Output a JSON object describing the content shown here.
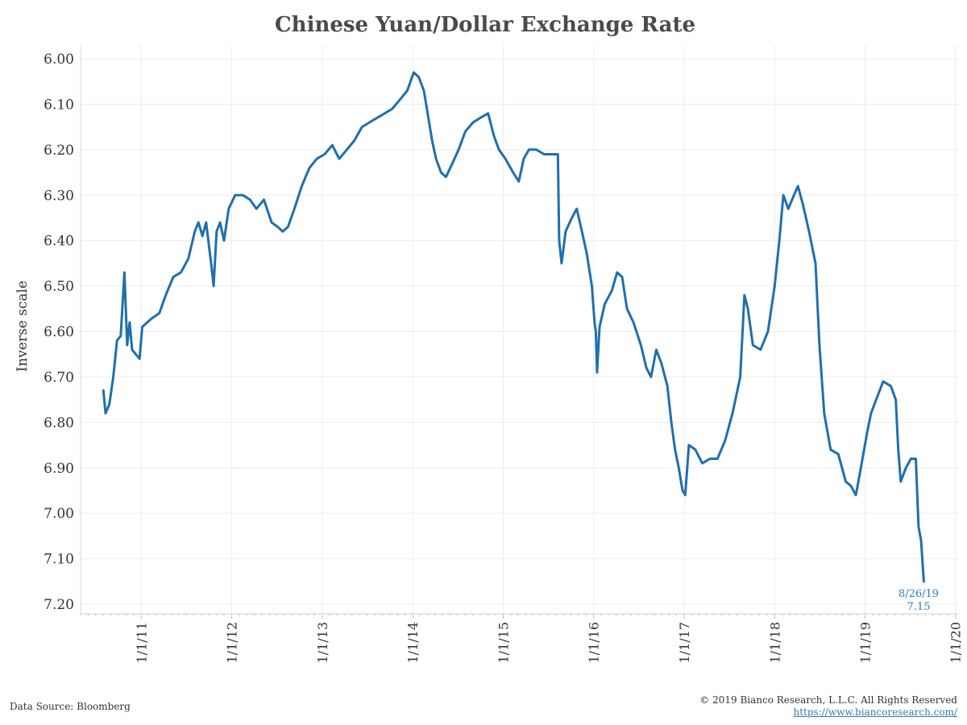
{
  "chart_data": {
    "type": "line",
    "title": "Chinese Yuan/Dollar Exchange Rate",
    "ylabel": "Inverse scale",
    "xlabel": "",
    "y_inverted": true,
    "ylim": [
      6.0,
      7.2
    ],
    "yticks": [
      "6.00",
      "6.10",
      "6.20",
      "6.30",
      "6.40",
      "6.50",
      "6.60",
      "6.70",
      "6.80",
      "6.90",
      "7.00",
      "7.10",
      "7.20"
    ],
    "xticks": [
      {
        "label": "1/1/11",
        "date": "2011-01-01"
      },
      {
        "label": "1/1/12",
        "date": "2012-01-01"
      },
      {
        "label": "1/1/13",
        "date": "2013-01-01"
      },
      {
        "label": "1/1/14",
        "date": "2014-01-01"
      },
      {
        "label": "1/1/15",
        "date": "2015-01-01"
      },
      {
        "label": "1/1/16",
        "date": "2016-01-01"
      },
      {
        "label": "1/1/17",
        "date": "2017-01-01"
      },
      {
        "label": "1/1/18",
        "date": "2018-01-01"
      },
      {
        "label": "1/1/19",
        "date": "2019-01-01"
      },
      {
        "label": "1/1/20",
        "date": "2020-01-01"
      }
    ],
    "xlim": [
      "2010-05-01",
      "2020-01-15"
    ],
    "grid": true,
    "line_color": "#1f6fae",
    "series": [
      {
        "points": [
          [
            "2010-08-01",
            6.73
          ],
          [
            "2010-08-10",
            6.78
          ],
          [
            "2010-08-25",
            6.76
          ],
          [
            "2010-09-10",
            6.7
          ],
          [
            "2010-09-25",
            6.62
          ],
          [
            "2010-10-10",
            6.61
          ],
          [
            "2010-10-25",
            6.47
          ],
          [
            "2010-11-05",
            6.63
          ],
          [
            "2010-11-15",
            6.58
          ],
          [
            "2010-11-25",
            6.64
          ],
          [
            "2010-12-10",
            6.65
          ],
          [
            "2010-12-25",
            6.66
          ],
          [
            "2011-01-05",
            6.59
          ],
          [
            "2011-01-25",
            6.58
          ],
          [
            "2011-02-15",
            6.57
          ],
          [
            "2011-03-15",
            6.56
          ],
          [
            "2011-04-10",
            6.52
          ],
          [
            "2011-05-10",
            6.48
          ],
          [
            "2011-06-10",
            6.47
          ],
          [
            "2011-07-10",
            6.44
          ],
          [
            "2011-08-05",
            6.38
          ],
          [
            "2011-08-20",
            6.36
          ],
          [
            "2011-09-05",
            6.39
          ],
          [
            "2011-09-20",
            6.36
          ],
          [
            "2011-10-10",
            6.45
          ],
          [
            "2011-10-20",
            6.5
          ],
          [
            "2011-11-01",
            6.38
          ],
          [
            "2011-11-15",
            6.36
          ],
          [
            "2011-12-01",
            6.4
          ],
          [
            "2011-12-20",
            6.33
          ],
          [
            "2012-01-15",
            6.3
          ],
          [
            "2012-02-15",
            6.3
          ],
          [
            "2012-03-15",
            6.31
          ],
          [
            "2012-04-10",
            6.33
          ],
          [
            "2012-05-10",
            6.31
          ],
          [
            "2012-06-10",
            6.36
          ],
          [
            "2012-07-05",
            6.37
          ],
          [
            "2012-07-25",
            6.38
          ],
          [
            "2012-08-15",
            6.37
          ],
          [
            "2012-09-10",
            6.33
          ],
          [
            "2012-10-10",
            6.28
          ],
          [
            "2012-11-10",
            6.24
          ],
          [
            "2012-12-10",
            6.22
          ],
          [
            "2013-01-10",
            6.21
          ],
          [
            "2013-02-10",
            6.19
          ],
          [
            "2013-03-10",
            6.22
          ],
          [
            "2013-04-10",
            6.2
          ],
          [
            "2013-05-10",
            6.18
          ],
          [
            "2013-06-10",
            6.15
          ],
          [
            "2013-07-10",
            6.14
          ],
          [
            "2013-08-10",
            6.13
          ],
          [
            "2013-09-10",
            6.12
          ],
          [
            "2013-10-10",
            6.11
          ],
          [
            "2013-11-10",
            6.09
          ],
          [
            "2013-12-10",
            6.07
          ],
          [
            "2014-01-05",
            6.03
          ],
          [
            "2014-01-25",
            6.04
          ],
          [
            "2014-02-15",
            6.07
          ],
          [
            "2014-03-05",
            6.13
          ],
          [
            "2014-03-20",
            6.18
          ],
          [
            "2014-04-05",
            6.22
          ],
          [
            "2014-04-25",
            6.25
          ],
          [
            "2014-05-15",
            6.26
          ],
          [
            "2014-06-10",
            6.23
          ],
          [
            "2014-07-05",
            6.2
          ],
          [
            "2014-08-01",
            6.16
          ],
          [
            "2014-09-01",
            6.14
          ],
          [
            "2014-10-01",
            6.13
          ],
          [
            "2014-11-01",
            6.12
          ],
          [
            "2014-11-25",
            6.17
          ],
          [
            "2014-12-15",
            6.2
          ],
          [
            "2015-01-10",
            6.22
          ],
          [
            "2015-02-10",
            6.25
          ],
          [
            "2015-03-05",
            6.27
          ],
          [
            "2015-03-25",
            6.22
          ],
          [
            "2015-04-15",
            6.2
          ],
          [
            "2015-05-15",
            6.2
          ],
          [
            "2015-06-15",
            6.21
          ],
          [
            "2015-07-15",
            6.21
          ],
          [
            "2015-08-10",
            6.21
          ],
          [
            "2015-08-15",
            6.4
          ],
          [
            "2015-08-25",
            6.45
          ],
          [
            "2015-09-10",
            6.38
          ],
          [
            "2015-10-05",
            6.35
          ],
          [
            "2015-10-25",
            6.33
          ],
          [
            "2015-11-15",
            6.38
          ],
          [
            "2015-12-05",
            6.43
          ],
          [
            "2015-12-25",
            6.5
          ],
          [
            "2016-01-05",
            6.58
          ],
          [
            "2016-01-10",
            6.6
          ],
          [
            "2016-01-15",
            6.69
          ],
          [
            "2016-01-25",
            6.59
          ],
          [
            "2016-02-15",
            6.54
          ],
          [
            "2016-03-15",
            6.51
          ],
          [
            "2016-04-05",
            6.47
          ],
          [
            "2016-04-25",
            6.48
          ],
          [
            "2016-05-15",
            6.55
          ],
          [
            "2016-06-10",
            6.58
          ],
          [
            "2016-07-10",
            6.63
          ],
          [
            "2016-08-01",
            6.68
          ],
          [
            "2016-08-20",
            6.7
          ],
          [
            "2016-09-10",
            6.64
          ],
          [
            "2016-10-01",
            6.67
          ],
          [
            "2016-10-25",
            6.72
          ],
          [
            "2016-11-10",
            6.8
          ],
          [
            "2016-11-25",
            6.86
          ],
          [
            "2016-12-10",
            6.9
          ],
          [
            "2016-12-25",
            6.95
          ],
          [
            "2017-01-05",
            6.96
          ],
          [
            "2017-01-20",
            6.85
          ],
          [
            "2017-02-15",
            6.86
          ],
          [
            "2017-03-15",
            6.89
          ],
          [
            "2017-04-15",
            6.88
          ],
          [
            "2017-05-15",
            6.88
          ],
          [
            "2017-06-15",
            6.84
          ],
          [
            "2017-07-15",
            6.78
          ],
          [
            "2017-08-15",
            6.7
          ],
          [
            "2017-09-01",
            6.52
          ],
          [
            "2017-09-15",
            6.55
          ],
          [
            "2017-10-05",
            6.63
          ],
          [
            "2017-11-05",
            6.64
          ],
          [
            "2017-12-05",
            6.6
          ],
          [
            "2018-01-01",
            6.5
          ],
          [
            "2018-01-20",
            6.4
          ],
          [
            "2018-02-05",
            6.3
          ],
          [
            "2018-02-25",
            6.33
          ],
          [
            "2018-03-20",
            6.3
          ],
          [
            "2018-04-05",
            6.28
          ],
          [
            "2018-04-25",
            6.32
          ],
          [
            "2018-05-20",
            6.38
          ],
          [
            "2018-06-15",
            6.45
          ],
          [
            "2018-07-01",
            6.63
          ],
          [
            "2018-07-20",
            6.78
          ],
          [
            "2018-08-15",
            6.86
          ],
          [
            "2018-09-15",
            6.87
          ],
          [
            "2018-10-15",
            6.93
          ],
          [
            "2018-11-05",
            6.94
          ],
          [
            "2018-11-25",
            6.96
          ],
          [
            "2018-12-15",
            6.9
          ],
          [
            "2019-01-10",
            6.82
          ],
          [
            "2019-01-25",
            6.78
          ],
          [
            "2019-02-15",
            6.75
          ],
          [
            "2019-03-15",
            6.71
          ],
          [
            "2019-04-15",
            6.72
          ],
          [
            "2019-05-05",
            6.75
          ],
          [
            "2019-05-15",
            6.86
          ],
          [
            "2019-05-25",
            6.93
          ],
          [
            "2019-06-15",
            6.9
          ],
          [
            "2019-07-05",
            6.88
          ],
          [
            "2019-07-25",
            6.88
          ],
          [
            "2019-08-05",
            7.03
          ],
          [
            "2019-08-15",
            7.06
          ],
          [
            "2019-08-26",
            7.15
          ]
        ]
      }
    ],
    "annotation": {
      "date_label": "8/26/19",
      "value_label": "7.15",
      "color": "#2e7db5"
    }
  },
  "footer": {
    "source": "Data Source: Bloomberg",
    "copyright": "© 2019 Bianco Research, L.L.C. All Rights Reserved",
    "url": "https://www.biancoresearch.com/"
  }
}
